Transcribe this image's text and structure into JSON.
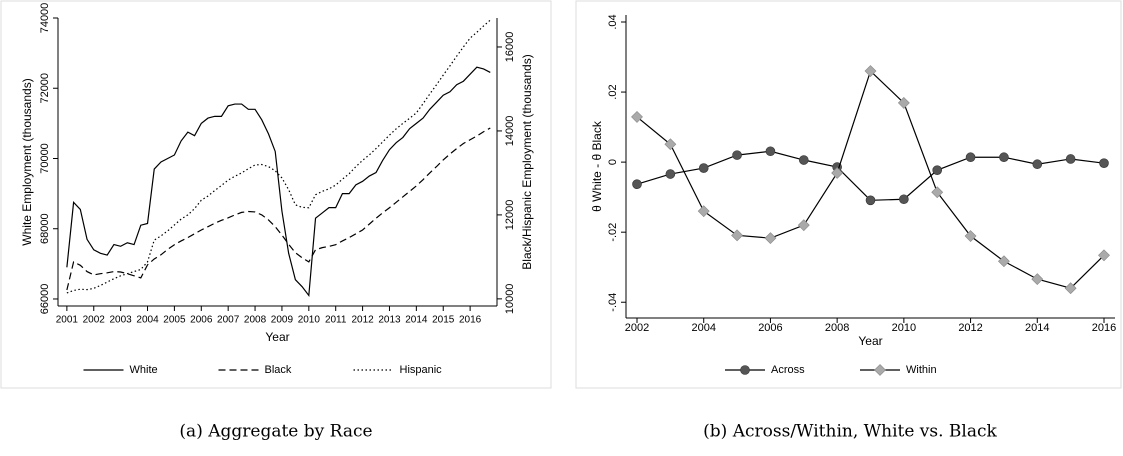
{
  "chart_data": [
    {
      "type": "line",
      "caption": "(a) Aggregate by Race",
      "xlabel": "Year",
      "ylabel": "White Employment (thousands)",
      "y2label": "Black/Hispanic Employment (thousands)",
      "x": [
        2001,
        2001.25,
        2001.5,
        2001.75,
        2002,
        2002.25,
        2002.5,
        2002.75,
        2003,
        2003.25,
        2003.5,
        2003.75,
        2004,
        2004.25,
        2004.5,
        2004.75,
        2005,
        2005.25,
        2005.5,
        2005.75,
        2006,
        2006.25,
        2006.5,
        2006.75,
        2007,
        2007.25,
        2007.5,
        2007.75,
        2008,
        2008.25,
        2008.5,
        2008.75,
        2009,
        2009.25,
        2009.5,
        2009.75,
        2010,
        2010.25,
        2010.5,
        2010.75,
        2011,
        2011.25,
        2011.5,
        2011.75,
        2012,
        2012.25,
        2012.5,
        2012.75,
        2013,
        2013.25,
        2013.5,
        2013.75,
        2014,
        2014.25,
        2014.5,
        2014.75,
        2015,
        2015.25,
        2015.5,
        2015.75,
        2016,
        2016.25,
        2016.5,
        2016.75
      ],
      "xlim": [
        2000.67,
        2017.0
      ],
      "xticks": [
        2001,
        2002,
        2003,
        2004,
        2005,
        2006,
        2007,
        2008,
        2009,
        2010,
        2011,
        2012,
        2013,
        2014,
        2015,
        2016
      ],
      "ylim": [
        65800,
        74000
      ],
      "yticks": [
        66000,
        68000,
        70000,
        72000,
        74000
      ],
      "y2lim": [
        9830,
        16690
      ],
      "y2ticks": [
        10000,
        12000,
        14000,
        16000
      ],
      "legend": "bottom",
      "series": [
        {
          "name": "White",
          "color": "#000000",
          "dash": "solid",
          "values": [
            66900,
            68750,
            68550,
            67700,
            67400,
            67300,
            67250,
            67550,
            67500,
            67600,
            67550,
            68100,
            68150,
            69700,
            69900,
            70000,
            70100,
            70500,
            70750,
            70650,
            71000,
            71150,
            71200,
            71200,
            71500,
            71550,
            71550,
            71400,
            71400,
            71100,
            70700,
            70200,
            68500,
            67300,
            66550,
            66350,
            66100,
            68300,
            68450,
            68600,
            68600,
            69000,
            69000,
            69250,
            69350,
            69500,
            69600,
            69950,
            70250,
            70450,
            70600,
            70850,
            71000,
            71150,
            71400,
            71600,
            71800,
            71900,
            72100,
            72200,
            72400,
            72600,
            72550,
            72450
          ]
        },
        {
          "name": "Black",
          "color": "#000000",
          "dash": "dashed",
          "axis": "y2",
          "values": [
            10210,
            10880,
            10800,
            10650,
            10570,
            10600,
            10620,
            10650,
            10640,
            10600,
            10550,
            10500,
            10810,
            10950,
            11050,
            11180,
            11290,
            11380,
            11460,
            11550,
            11640,
            11720,
            11800,
            11870,
            11930,
            12000,
            12060,
            12080,
            12070,
            12000,
            11880,
            11720,
            11520,
            11300,
            11100,
            10980,
            10880,
            11170,
            11220,
            11250,
            11290,
            11380,
            11460,
            11550,
            11640,
            11780,
            11920,
            12050,
            12170,
            12300,
            12430,
            12560,
            12690,
            12840,
            13000,
            13150,
            13310,
            13450,
            13580,
            13700,
            13790,
            13880,
            13980,
            14070
          ]
        },
        {
          "name": "Hispanic",
          "color": "#000000",
          "dash": "dotted",
          "axis": "y2",
          "values": [
            10140,
            10200,
            10230,
            10220,
            10250,
            10320,
            10400,
            10480,
            10550,
            10600,
            10650,
            10700,
            10880,
            11400,
            11500,
            11620,
            11760,
            11900,
            12000,
            12150,
            12350,
            12450,
            12580,
            12700,
            12830,
            12920,
            13000,
            13100,
            13190,
            13200,
            13150,
            13050,
            12880,
            12600,
            12240,
            12180,
            12170,
            12480,
            12560,
            12620,
            12710,
            12850,
            12980,
            13150,
            13300,
            13430,
            13580,
            13740,
            13900,
            14050,
            14180,
            14300,
            14430,
            14650,
            14880,
            15100,
            15330,
            15550,
            15780,
            16000,
            16210,
            16350,
            16500,
            16640
          ]
        }
      ]
    },
    {
      "type": "line",
      "caption": "(b) Across/Within, White vs. Black",
      "xlabel": "Year",
      "ylabel": "θ White - θ Black",
      "x": [
        2002,
        2003,
        2004,
        2005,
        2006,
        2007,
        2008,
        2009,
        2010,
        2011,
        2012,
        2013,
        2014,
        2015,
        2016
      ],
      "xlim": [
        2001.67,
        2016.33
      ],
      "xticks": [
        2002,
        2004,
        2006,
        2008,
        2010,
        2012,
        2014,
        2016
      ],
      "ylim": [
        -0.0445,
        0.042
      ],
      "yticks": [
        {
          "value": -0.04,
          "label": "-.04"
        },
        {
          "value": -0.02,
          "label": "-.02"
        },
        0,
        {
          "value": 0.02,
          "label": ".02"
        },
        {
          "value": 0.04,
          "label": ".04"
        }
      ],
      "legend": "bottom",
      "series": [
        {
          "name": "Across",
          "color": "#555555",
          "line_color": "#000000",
          "marker": "circle",
          "values": [
            -0.0063,
            -0.0034,
            -0.0017,
            0.002,
            0.0031,
            0.0006,
            -0.0014,
            -0.0109,
            -0.0106,
            -0.0023,
            0.0014,
            0.0014,
            -0.0006,
            0.0009,
            -0.0003
          ]
        },
        {
          "name": "Within",
          "color": "#aaaaaa",
          "line_color": "#000000",
          "marker": "diamond",
          "values": [
            0.0129,
            0.0051,
            -0.014,
            -0.0209,
            -0.0217,
            -0.018,
            -0.0031,
            0.026,
            0.0169,
            -0.0086,
            -0.0211,
            -0.0283,
            -0.0334,
            -0.036,
            -0.0266
          ]
        }
      ]
    }
  ]
}
